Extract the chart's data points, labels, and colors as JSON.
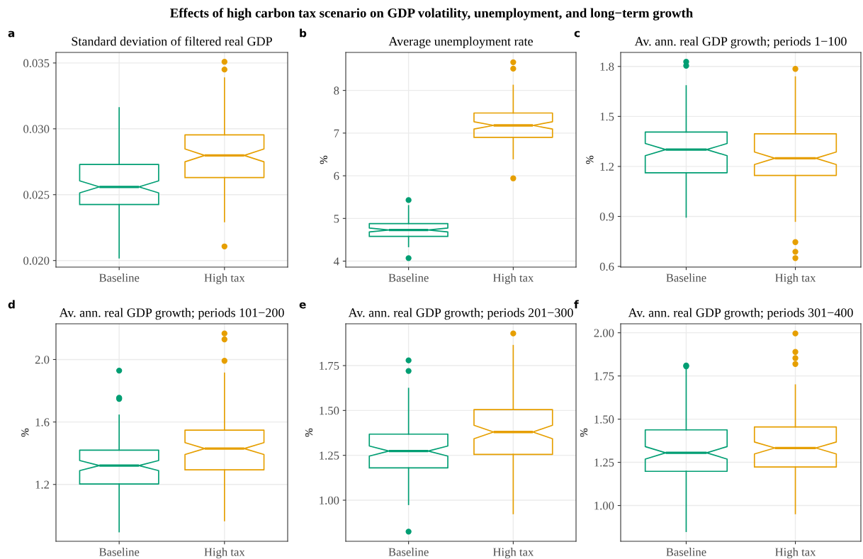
{
  "chart_data": [
    {
      "type": "box",
      "title": "Standard deviation of filtered real GDP",
      "annotations": [
        "a",
        "Effects of high carbon tax scenario on GDP volatility, unemployment, and long−term growth"
      ],
      "categories": [
        "Baseline",
        "High tax"
      ],
      "colors": [
        "#009e73",
        "#e69f00"
      ],
      "grid": true,
      "ylim": [
        0.0195,
        0.0358
      ],
      "yticks": [
        {
          "value": 0.02,
          "label": "0.020"
        },
        {
          "value": 0.025,
          "label": "0.025"
        },
        {
          "value": 0.03,
          "label": "0.030"
        },
        {
          "value": 0.035,
          "label": "0.035"
        }
      ],
      "boxes": [
        {
          "low": 0.0202,
          "q1": 0.02425,
          "median": 0.02559,
          "q3": 0.02729,
          "high": 0.0316
        },
        {
          "low": 0.02295,
          "q1": 0.0263,
          "median": 0.02798,
          "q3": 0.02954,
          "high": 0.03386,
          "outliers": [
            0.03509,
            0.0345,
            0.02107
          ]
        }
      ]
    },
    {
      "type": "box",
      "title": "Average unemployment rate",
      "ylabel": "%",
      "annotations": [
        "b"
      ],
      "categories": [
        "Baseline",
        "High tax"
      ],
      "colors": [
        "#009e73",
        "#e69f00"
      ],
      "grid": true,
      "ylim": [
        3.86,
        8.89
      ],
      "yticks": [
        4,
        5,
        6,
        7,
        8
      ],
      "boxes": [
        {
          "low": 4.34,
          "q1": 4.58,
          "median": 4.73,
          "q3": 4.88,
          "high": 5.3,
          "outliers": [
            5.43,
            4.07
          ]
        },
        {
          "low": 6.4,
          "q1": 6.9,
          "median": 7.18,
          "q3": 7.47,
          "high": 8.12,
          "outliers": [
            8.66,
            8.51,
            5.94
          ]
        }
      ]
    },
    {
      "type": "box",
      "title": "Av. ann. real GDP growth; periods 1−100",
      "ylabel": "%",
      "annotations": [
        "c"
      ],
      "categories": [
        "Baseline",
        "High tax"
      ],
      "colors": [
        "#009e73",
        "#e69f00"
      ],
      "grid": true,
      "ylim": [
        0.596,
        1.884
      ],
      "yticks": [
        0.6,
        0.9,
        1.2,
        1.5,
        1.8
      ],
      "boxes": [
        {
          "low": 0.896,
          "q1": 1.162,
          "median": 1.301,
          "q3": 1.406,
          "high": 1.684,
          "outliers": [
            1.828,
            1.804
          ]
        },
        {
          "low": 0.871,
          "q1": 1.146,
          "median": 1.249,
          "q3": 1.396,
          "high": 1.737,
          "outliers": [
            1.785,
            0.746,
            0.688,
            0.65
          ]
        }
      ]
    },
    {
      "type": "box",
      "title": "Av. ann. real GDP growth; periods 101−200",
      "ylabel": "%",
      "annotations": [
        "d"
      ],
      "categories": [
        "Baseline",
        "High tax"
      ],
      "colors": [
        "#009e73",
        "#e69f00"
      ],
      "grid": true,
      "ylim": [
        0.836,
        2.229
      ],
      "yticks": [
        1.2,
        1.6,
        {
          "value": 2.0,
          "label": "2.0"
        }
      ],
      "boxes": [
        {
          "low": 0.897,
          "q1": 1.203,
          "median": 1.321,
          "q3": 1.42,
          "high": 1.644,
          "outliers": [
            1.929,
            1.755,
            1.748
          ]
        },
        {
          "low": 0.968,
          "q1": 1.294,
          "median": 1.43,
          "q3": 1.548,
          "high": 1.913,
          "outliers": [
            2.167,
            2.129,
            1.992
          ]
        }
      ]
    },
    {
      "type": "box",
      "title": "Av. ann. real GDP growth; periods 201−300",
      "ylabel": "%",
      "annotations": [
        "e"
      ],
      "categories": [
        "Baseline",
        "High tax"
      ],
      "colors": [
        "#009e73",
        "#e69f00"
      ],
      "grid": true,
      "ylim": [
        0.771,
        1.983
      ],
      "yticks": [
        {
          "value": 1.0,
          "label": "1.00"
        },
        1.25,
        {
          "value": 1.5,
          "label": "1.50"
        },
        1.75
      ],
      "boxes": [
        {
          "low": 0.976,
          "q1": 1.18,
          "median": 1.274,
          "q3": 1.368,
          "high": 1.623,
          "outliers": [
            1.779,
            1.72,
            0.825
          ]
        },
        {
          "low": 0.925,
          "q1": 1.255,
          "median": 1.38,
          "q3": 1.505,
          "high": 1.862,
          "outliers": [
            1.929
          ]
        }
      ]
    },
    {
      "type": "box",
      "title": "Av. ann. real GDP growth; periods 301−400",
      "ylabel": "%",
      "annotations": [
        "f"
      ],
      "categories": [
        "Baseline",
        "High tax"
      ],
      "colors": [
        "#009e73",
        "#e69f00"
      ],
      "grid": true,
      "ylim": [
        0.793,
        2.052
      ],
      "yticks": [
        {
          "value": 1.0,
          "label": "1.00"
        },
        1.25,
        {
          "value": 1.5,
          "label": "1.50"
        },
        1.75,
        {
          "value": 2.0,
          "label": "2.00"
        }
      ],
      "boxes": [
        {
          "low": 0.85,
          "q1": 1.198,
          "median": 1.305,
          "q3": 1.438,
          "high": 1.8,
          "outliers": [
            1.81,
            1.806
          ]
        },
        {
          "low": 0.953,
          "q1": 1.223,
          "median": 1.333,
          "q3": 1.455,
          "high": 1.698,
          "outliers": [
            1.996,
            1.889,
            1.853,
            1.819
          ]
        }
      ]
    }
  ]
}
